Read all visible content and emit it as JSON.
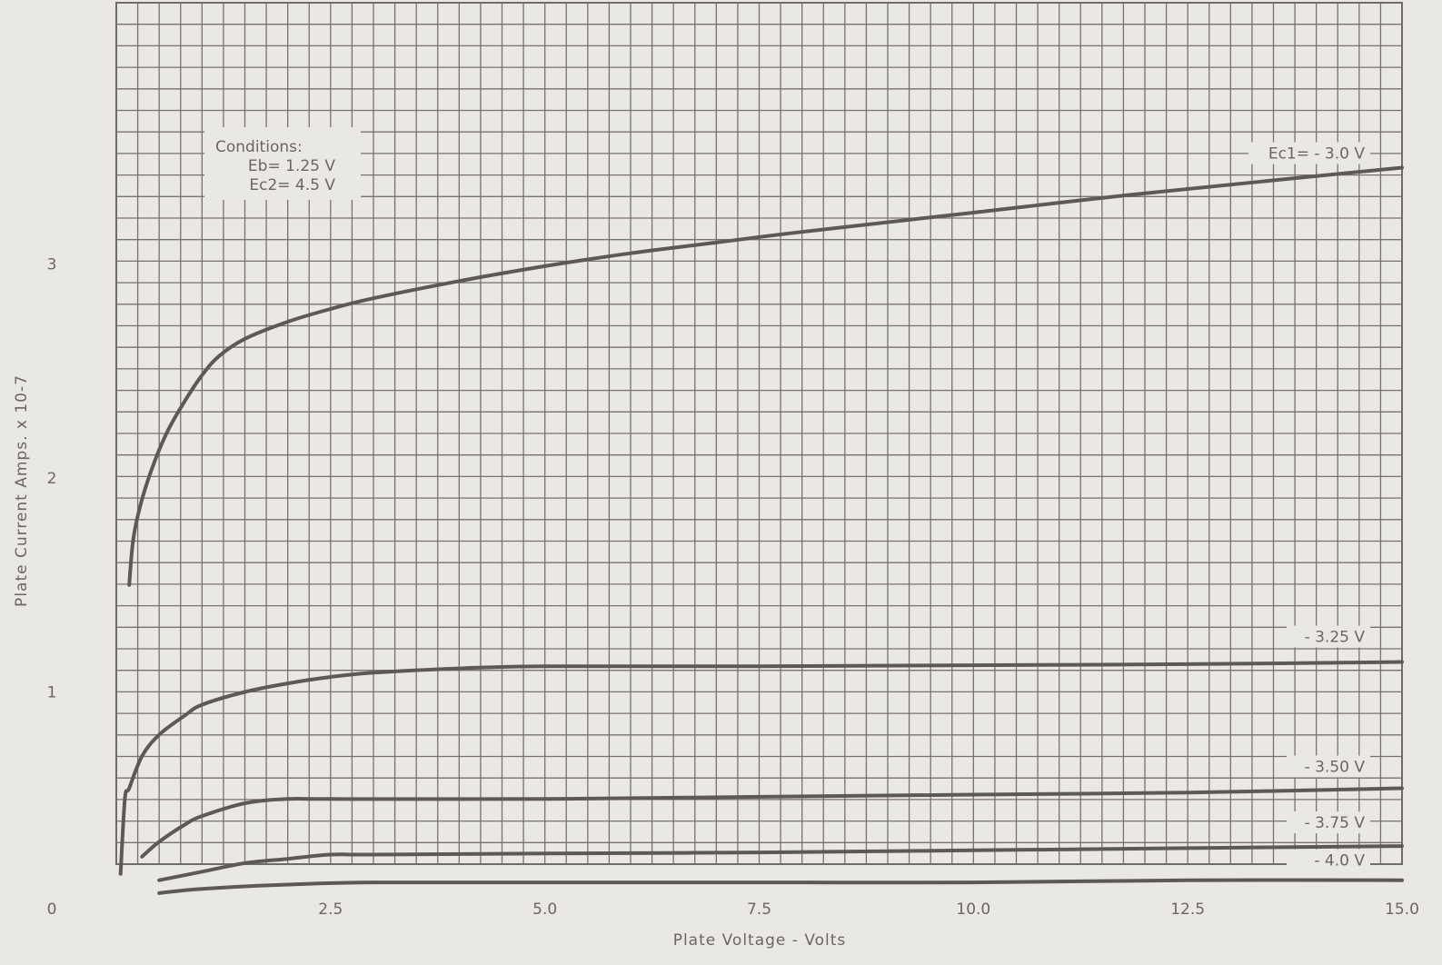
{
  "chart_data": {
    "type": "line",
    "title": "",
    "xlabel": "Plate Voltage - Volts",
    "ylabel": "Plate Current Amps. x 10-7",
    "xlim": [
      0,
      15.0
    ],
    "ylim": [
      0,
      4.0
    ],
    "x_ticks": [
      "0",
      "2.5",
      "5.0",
      "7.5",
      "10.0",
      "12.5",
      "15.0"
    ],
    "y_ticks": [
      "1",
      "2",
      "3"
    ],
    "grid": true,
    "conditions": {
      "heading": "Conditions:",
      "lines": [
        "Eb= 1.25 V",
        "Ec2= 4.5 V"
      ]
    },
    "series": [
      {
        "name": "Ec1= - 3.0 V",
        "x": [
          0.15,
          0.2,
          0.3,
          0.45,
          0.6,
          0.8,
          1.0,
          1.2,
          1.5,
          2.0,
          2.5,
          3.0,
          4.0,
          5.0,
          6.0,
          7.0,
          8.0,
          10.0,
          12.0,
          15.0
        ],
        "y": [
          1.5,
          1.72,
          1.9,
          2.08,
          2.22,
          2.36,
          2.48,
          2.57,
          2.65,
          2.73,
          2.79,
          2.84,
          2.92,
          2.99,
          3.05,
          3.1,
          3.15,
          3.24,
          3.33,
          3.45
        ]
      },
      {
        "name": "- 3.25 V",
        "x": [
          0.05,
          0.1,
          0.15,
          0.3,
          0.5,
          0.8,
          1.0,
          1.5,
          2.0,
          2.5,
          3.0,
          4.0,
          5.0,
          7.5,
          10.0,
          12.5,
          15.0
        ],
        "y": [
          0.15,
          0.5,
          0.55,
          0.7,
          0.8,
          0.89,
          0.94,
          1.0,
          1.04,
          1.07,
          1.09,
          1.11,
          1.12,
          1.12,
          1.125,
          1.13,
          1.14
        ]
      },
      {
        "name": "- 3.50 V",
        "x": [
          0.3,
          0.5,
          0.8,
          1.0,
          1.5,
          2.0,
          2.5,
          5.0,
          7.5,
          10.0,
          12.5,
          15.0
        ],
        "y": [
          0.23,
          0.3,
          0.38,
          0.42,
          0.48,
          0.5,
          0.5,
          0.5,
          0.51,
          0.52,
          0.53,
          0.55
        ]
      },
      {
        "name": "- 3.75 V",
        "x": [
          0.5,
          1.0,
          1.5,
          2.0,
          2.5,
          3.0,
          5.0,
          7.5,
          10.0,
          12.5,
          15.0
        ],
        "y": [
          0.12,
          0.16,
          0.2,
          0.22,
          0.24,
          0.24,
          0.245,
          0.25,
          0.26,
          0.27,
          0.28
        ]
      },
      {
        "name": "- 4.0 V",
        "x": [
          0.5,
          1.0,
          2.0,
          3.0,
          5.0,
          7.5,
          10.0,
          12.5,
          15.0
        ],
        "y": [
          0.06,
          0.08,
          0.1,
          0.11,
          0.11,
          0.11,
          0.11,
          0.12,
          0.12
        ]
      }
    ]
  }
}
